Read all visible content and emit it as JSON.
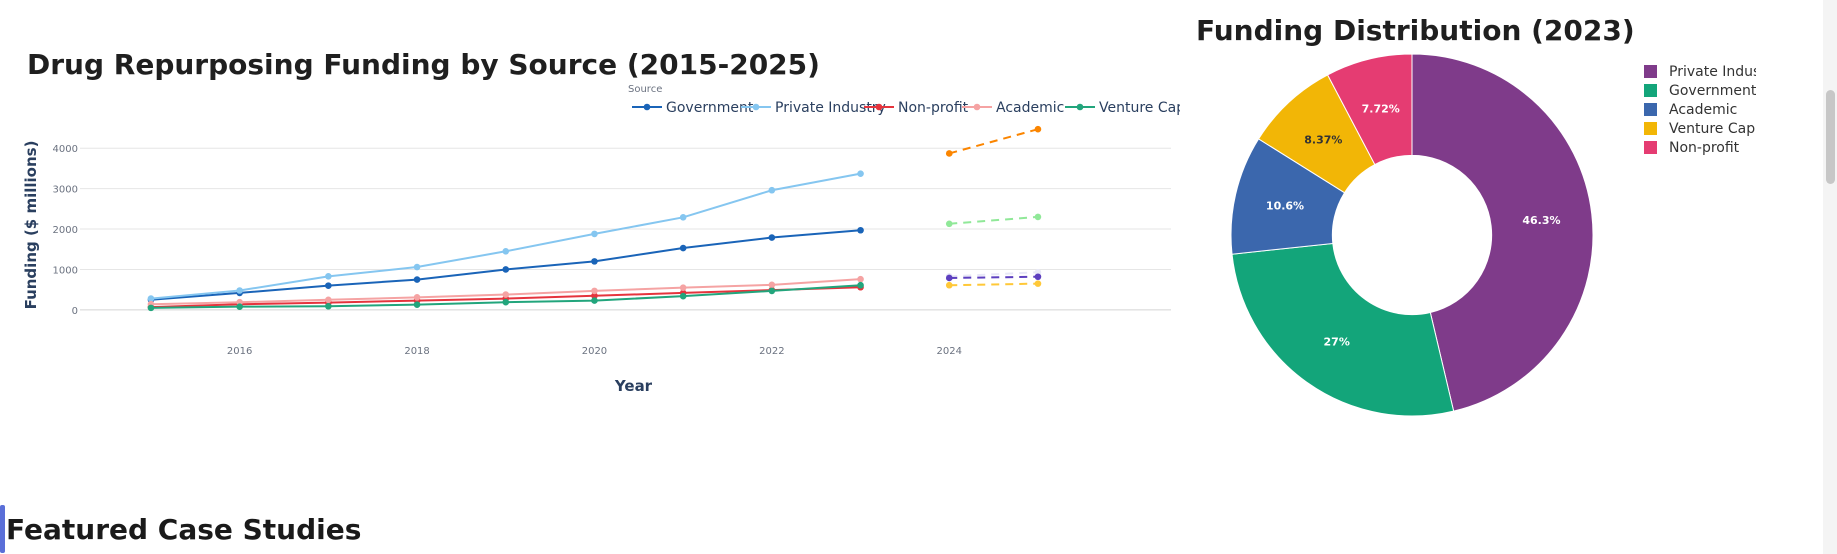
{
  "line_section": {
    "title": "Drug Repurposing Funding by Source (2015-2025)"
  },
  "pie_section": {
    "title": "Funding Distribution (2023)"
  },
  "case_studies": {
    "heading": "Featured Case Studies"
  },
  "chart_data": [
    {
      "type": "line",
      "title": "Drug Repurposing Funding by Source (2015-2025)",
      "xlabel": "Year",
      "ylabel": "Funding ($ millions)",
      "legend_title": "Source",
      "legend_position": "top-right",
      "grid": true,
      "xlim": [
        2014.2,
        2026.5
      ],
      "ylim": [
        -250,
        4450
      ],
      "xticks": [
        2016,
        2018,
        2020,
        2022,
        2024
      ],
      "yticks": [
        0,
        1000,
        2000,
        3000,
        4000
      ],
      "x": [
        2015,
        2016,
        2017,
        2018,
        2019,
        2020,
        2021,
        2022,
        2023
      ],
      "series": [
        {
          "name": "Government",
          "color": "#1a64b8",
          "values": [
            250,
            420,
            600,
            750,
            1000,
            1200,
            1530,
            1790,
            1970
          ]
        },
        {
          "name": "Private Industry",
          "color": "#85c6f0",
          "values": [
            280,
            480,
            830,
            1060,
            1450,
            1880,
            2290,
            2960,
            3370
          ]
        },
        {
          "name": "Non-profit",
          "color": "#e5343d",
          "values": [
            70,
            140,
            180,
            230,
            280,
            350,
            420,
            490,
            560
          ]
        },
        {
          "name": "Academic",
          "color": "#f5a3a3",
          "values": [
            140,
            190,
            250,
            310,
            380,
            470,
            550,
            620,
            760
          ]
        },
        {
          "name": "Venture Capital",
          "color": "#22a57c",
          "values": [
            50,
            80,
            90,
            130,
            190,
            230,
            340,
            470,
            610
          ]
        }
      ],
      "projections": [
        {
          "color": "#fb8500",
          "x": [
            2024,
            2025
          ],
          "values": [
            3870,
            4470
          ]
        },
        {
          "color": "#90e898",
          "x": [
            2024,
            2025
          ],
          "values": [
            2130,
            2300
          ]
        },
        {
          "color": "#e8e8f7",
          "x": [
            2024,
            2025
          ],
          "values": [
            830,
            930
          ]
        },
        {
          "color": "#5d3fbf",
          "x": [
            2024,
            2025
          ],
          "values": [
            790,
            820
          ]
        },
        {
          "color": "#ffc838",
          "x": [
            2024,
            2025
          ],
          "values": [
            610,
            650
          ]
        }
      ]
    },
    {
      "type": "pie",
      "title": "Funding Distribution (2023)",
      "hole": 0.4,
      "legend_position": "right",
      "labels": [
        "Private Industry",
        "Government",
        "Academic",
        "Venture Capital",
        "Non-profit"
      ],
      "values": [
        46.3,
        27,
        10.6,
        8.37,
        7.72
      ],
      "text": [
        "46.3%",
        "27%",
        "10.6%",
        "8.37%",
        "7.72%"
      ],
      "colors": [
        "#7f3b8a",
        "#13a57a",
        "#3b67ad",
        "#f2b606",
        "#e53c72"
      ],
      "text_colors": [
        "#ffffff",
        "#ffffff",
        "#ffffff",
        "#333333",
        "#ffffff"
      ]
    }
  ]
}
